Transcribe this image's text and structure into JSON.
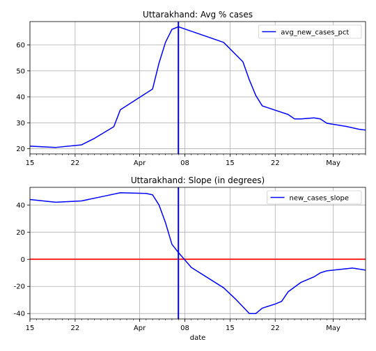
{
  "chart_data": [
    {
      "type": "line",
      "title": "Uttarakhand: Avg % cases",
      "xlabel": "",
      "ylabel": "",
      "x_tick_labels": [
        "15",
        "22",
        "Apr",
        "08",
        "15",
        "22",
        "May"
      ],
      "y_ticks": [
        20,
        30,
        40,
        50,
        60
      ],
      "xlim": [
        "2020-03-15",
        "2020-05-06"
      ],
      "ylim": [
        18,
        69
      ],
      "grid": true,
      "legend": "top-right",
      "series": [
        {
          "name": "avg_new_cases_pct",
          "color": "#0000ff",
          "x": [
            "2020-03-15",
            "2020-03-19",
            "2020-03-23",
            "2020-03-25",
            "2020-03-28",
            "2020-03-29",
            "2020-04-03",
            "2020-04-04",
            "2020-04-05",
            "2020-04-06",
            "2020-04-07",
            "2020-04-14",
            "2020-04-17",
            "2020-04-18",
            "2020-04-19",
            "2020-04-20",
            "2020-04-24",
            "2020-04-25",
            "2020-04-26",
            "2020-04-28",
            "2020-04-29",
            "2020-04-30",
            "2020-05-03",
            "2020-05-05",
            "2020-05-06"
          ],
          "y": [
            21,
            20.5,
            21.5,
            24,
            28.5,
            35,
            43,
            53,
            61,
            66,
            67,
            61,
            53.5,
            46.5,
            40.5,
            36.5,
            33.2,
            31.5,
            31.5,
            31.9,
            31.5,
            29.8,
            28.6,
            27.5,
            27.2
          ]
        }
      ],
      "vlines": [
        {
          "x": "2020-04-07",
          "color": "#0000ff"
        }
      ],
      "hlines": []
    },
    {
      "type": "line",
      "title": "Uttarakhand: Slope (in degrees)",
      "xlabel": "date",
      "ylabel": "",
      "x_tick_labels": [
        "15",
        "22",
        "Apr",
        "08",
        "15",
        "22",
        "May"
      ],
      "y_ticks": [
        40,
        20,
        0,
        -20,
        -40
      ],
      "xlim": [
        "2020-03-15",
        "2020-05-06"
      ],
      "ylim": [
        -44,
        53
      ],
      "grid": true,
      "legend": "top-right",
      "series": [
        {
          "name": "new_cases_slope",
          "color": "#0000ff",
          "x": [
            "2020-03-15",
            "2020-03-19",
            "2020-03-23",
            "2020-03-27",
            "2020-03-29",
            "2020-04-02",
            "2020-04-03",
            "2020-04-04",
            "2020-04-05",
            "2020-04-06",
            "2020-04-07",
            "2020-04-09",
            "2020-04-14",
            "2020-04-16",
            "2020-04-17",
            "2020-04-18",
            "2020-04-19",
            "2020-04-20",
            "2020-04-22",
            "2020-04-23",
            "2020-04-24",
            "2020-04-26",
            "2020-04-28",
            "2020-04-29",
            "2020-04-30",
            "2020-05-01",
            "2020-05-04",
            "2020-05-06"
          ],
          "y": [
            44,
            42,
            43,
            47,
            49,
            48.5,
            47.5,
            40,
            27,
            11,
            5,
            -6,
            -21,
            -30,
            -35,
            -40,
            -40,
            -36,
            -33,
            -31,
            -24,
            -17,
            -13,
            -10,
            -8.5,
            -8,
            -6.5,
            -8
          ]
        }
      ],
      "vlines": [
        {
          "x": "2020-04-07",
          "color": "#0000ff"
        }
      ],
      "hlines": [
        {
          "y": 0,
          "color": "#ff0000"
        }
      ]
    }
  ]
}
